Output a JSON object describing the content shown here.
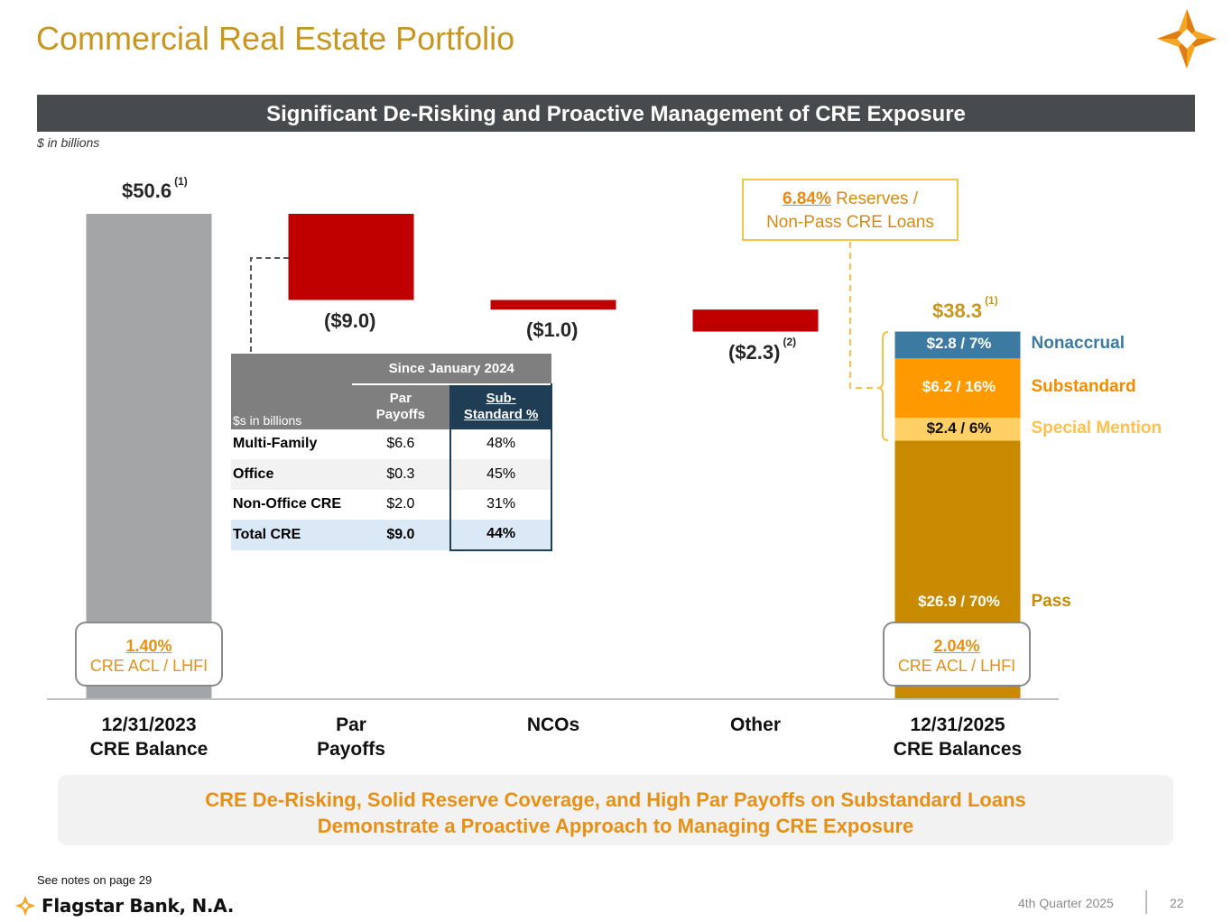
{
  "page": {
    "title": "Commercial Real Estate Portfolio",
    "banner": "Significant De-Risking and Proactive Management of CRE Exposure",
    "units": "$ in billions",
    "notes": "See notes on page 29",
    "brand": "Flagstar Bank, N.A.",
    "quarter": "4th Quarter 2025",
    "page_number": "22",
    "callout_line1": "CRE De-Risking, Solid Reserve Coverage, and High Par Payoffs on Substandard Loans",
    "callout_line2": "Demonstrate a Proactive Approach to Managing CRE Exposure"
  },
  "chart_data": {
    "type": "waterfall",
    "ylim": [
      0,
      50.6
    ],
    "categories": [
      {
        "line1": "12/31/2023",
        "line2": "CRE Balance"
      },
      {
        "line1": "Par",
        "line2": "Payoffs"
      },
      {
        "line1": "NCOs",
        "line2": ""
      },
      {
        "line1": "Other",
        "line2": ""
      },
      {
        "line1": "12/31/2025",
        "line2": "CRE Balances"
      }
    ],
    "steps": [
      {
        "kind": "total",
        "value": 50.6,
        "label": "$50.6",
        "note": "(1)",
        "color": "#a3a5a6"
      },
      {
        "kind": "decrease",
        "value": -9.0,
        "label": "($9.0)",
        "note": "",
        "color": "#c00000"
      },
      {
        "kind": "decrease",
        "value": -1.0,
        "label": "($1.0)",
        "note": "",
        "color": "#c00000"
      },
      {
        "kind": "decrease",
        "value": -2.3,
        "label": "($2.3)",
        "note": "(2)",
        "color": "#c00000"
      },
      {
        "kind": "stacked_total",
        "value": 38.3,
        "label": "$38.3",
        "note": "(1)"
      }
    ],
    "ending_segments": [
      {
        "name": "Pass",
        "value": 26.9,
        "label": "$26.9 / 70%",
        "color": "#c88a00",
        "legend_color": "#c88a00"
      },
      {
        "name": "Special Mention",
        "value": 2.4,
        "label": "$2.4 / 6%",
        "color": "#ffd066",
        "legend_color": "#ffc04d"
      },
      {
        "name": "Substandard",
        "value": 6.2,
        "label": "$6.2 / 16%",
        "color": "#ff9900",
        "legend_color": "#f08c00"
      },
      {
        "name": "Nonaccrual",
        "value": 2.8,
        "label": "$2.8 / 7%",
        "color": "#3d7aa1",
        "legend_color": "#3d7aa1"
      }
    ],
    "acl_boxes": [
      {
        "pct": "1.40%",
        "desc": "CRE ACL / LHFI"
      },
      {
        "pct": "2.04%",
        "desc": "CRE ACL / LHFI"
      }
    ],
    "reserve_callout": {
      "pct": "6.84%",
      "line1_rest": " Reserves /",
      "line2": "Non-Pass CRE Loans"
    }
  },
  "payoff_table": {
    "group_header": "Since January 2024",
    "units": "$s in billions",
    "col1": [
      "Par",
      "Payoffs"
    ],
    "col2": [
      "Sub-",
      "Standard %"
    ],
    "rows": [
      {
        "name": "Multi-Family",
        "payoffs": "$6.6",
        "pct": "48%"
      },
      {
        "name": "Office",
        "payoffs": "$0.3",
        "pct": "45%"
      },
      {
        "name": "Non-Office CRE",
        "payoffs": "$2.0",
        "pct": "31%"
      },
      {
        "name": "Total CRE",
        "payoffs": "$9.0",
        "pct": "44%"
      }
    ]
  }
}
